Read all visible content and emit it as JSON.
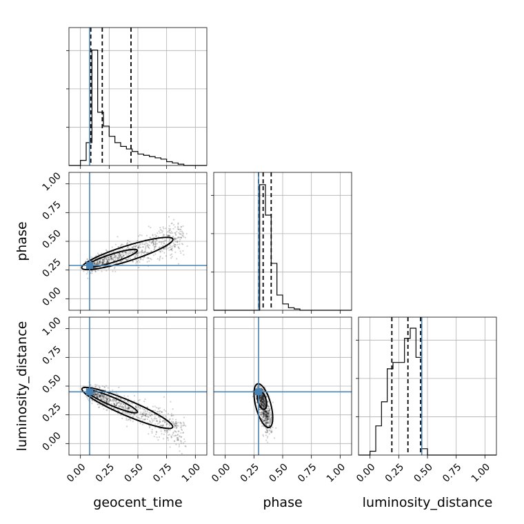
{
  "chart_data": {
    "type": "corner",
    "parameters": [
      "geocent_time",
      "phase",
      "luminosity_distance"
    ],
    "axis_range": [
      -0.1,
      1.1
    ],
    "ticks": [
      0.0,
      0.25,
      0.5,
      0.75,
      1.0
    ],
    "tick_labels": [
      "0.00",
      "0.25",
      "0.50",
      "0.75",
      "1.00"
    ],
    "truths": {
      "geocent_time": 0.08,
      "phase": 0.29,
      "luminosity_distance": 0.45
    },
    "colors": {
      "truth": "#4682b4",
      "hist": "#000000",
      "grid": "#b0b0b0"
    },
    "diagonal": {
      "geocent_time": {
        "bins": [
          -0.1,
          -0.05,
          0.0,
          0.05,
          0.1,
          0.15,
          0.2,
          0.25,
          0.3,
          0.35,
          0.4,
          0.45,
          0.5,
          0.55,
          0.6,
          0.65,
          0.7,
          0.75,
          0.8,
          0.85,
          0.9,
          0.95,
          1.0,
          1.05,
          1.1
        ],
        "counts": [
          0,
          0,
          0.04,
          0.18,
          0.91,
          0.42,
          0.31,
          0.23,
          0.18,
          0.15,
          0.13,
          0.11,
          0.09,
          0.08,
          0.07,
          0.06,
          0.05,
          0.03,
          0.02,
          0.01,
          0,
          0,
          0,
          0
        ],
        "quantiles": [
          0.09,
          0.19,
          0.44
        ]
      },
      "phase": {
        "bins": [
          -0.1,
          -0.05,
          0.0,
          0.05,
          0.1,
          0.15,
          0.2,
          0.25,
          0.3,
          0.35,
          0.4,
          0.45,
          0.5,
          0.55,
          0.6,
          0.65,
          0.7,
          0.75,
          0.8,
          0.85,
          0.9,
          0.95,
          1.0,
          1.05,
          1.1
        ],
        "counts": [
          0,
          0,
          0,
          0,
          0,
          0,
          0,
          0,
          0.99,
          0.75,
          0.37,
          0.12,
          0.05,
          0.02,
          0.01,
          0,
          0,
          0,
          0,
          0,
          0,
          0,
          0,
          0
        ],
        "quantiles": [
          0.29,
          0.33,
          0.4
        ]
      },
      "luminosity_distance": {
        "bins": [
          -0.1,
          -0.05,
          0.0,
          0.05,
          0.1,
          0.15,
          0.2,
          0.25,
          0.3,
          0.35,
          0.4,
          0.45,
          0.5,
          0.55,
          0.6,
          0.65,
          0.7,
          0.75,
          0.8,
          0.85,
          0.9,
          0.95,
          1.0,
          1.05,
          1.1
        ],
        "counts": [
          0,
          0,
          0.03,
          0.23,
          0.42,
          0.68,
          0.73,
          0.73,
          0.92,
          1.0,
          0.77,
          0.05,
          0,
          0,
          0,
          0,
          0,
          0,
          0,
          0,
          0,
          0,
          0,
          0
        ],
        "quantiles": [
          0.19,
          0.33,
          0.44
        ]
      }
    },
    "pairs": [
      {
        "x": "geocent_time",
        "y": "phase",
        "trend": {
          "x0": 0.08,
          "y0": 0.29,
          "x1": 0.9,
          "y1": 0.55,
          "spread": 0.05
        }
      },
      {
        "x": "geocent_time",
        "y": "luminosity_distance",
        "trend": {
          "x0": 0.08,
          "y0": 0.45,
          "x1": 0.9,
          "y1": 0.1,
          "spread": 0.05
        }
      },
      {
        "x": "phase",
        "y": "luminosity_distance",
        "trend": {
          "x0": 0.3,
          "y0": 0.45,
          "x1": 0.38,
          "y1": 0.15,
          "spread": 0.04
        }
      }
    ]
  }
}
